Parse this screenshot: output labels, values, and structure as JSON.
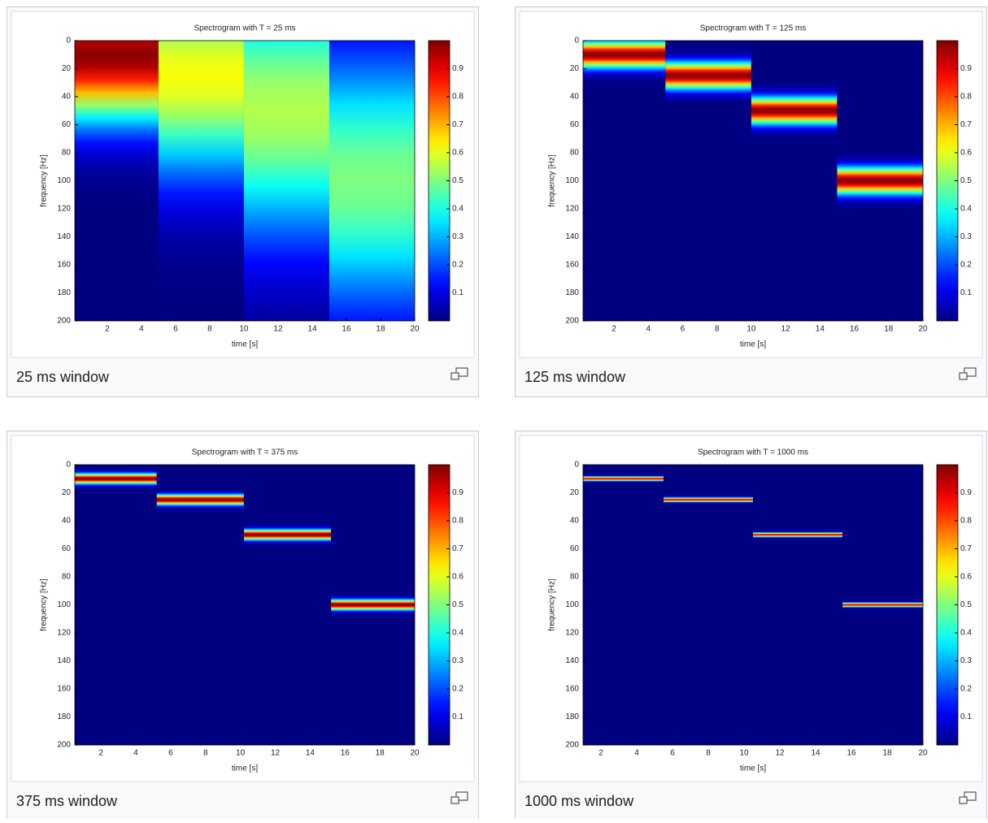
{
  "chart_data": [
    {
      "type": "heatmap",
      "title": "Spectrogram with T = 25 ms",
      "xlabel": "time [s]",
      "ylabel": "frequency [Hz]",
      "caption": "25 ms window",
      "xlim": [
        0.1,
        20
      ],
      "xticks": [
        2,
        4,
        6,
        8,
        10,
        12,
        14,
        16,
        18,
        20
      ],
      "ylim": [
        0,
        200
      ],
      "y_reversed": true,
      "yticks": [
        0,
        20,
        40,
        60,
        80,
        100,
        120,
        140,
        160,
        180,
        200
      ],
      "colormap": "jet",
      "clim": [
        0,
        1
      ],
      "cticks": [
        0.1,
        0.2,
        0.3,
        0.4,
        0.5,
        0.6,
        0.7,
        0.8,
        0.9
      ],
      "segments": {
        "start": [
          0.1,
          5,
          10,
          15
        ],
        "end": [
          5,
          10,
          15,
          20
        ],
        "frequency": [
          10,
          25,
          50,
          100
        ],
        "bandwidth": [
          45,
          70,
          90,
          90
        ],
        "peak": [
          0.99,
          0.62,
          0.55,
          0.5
        ]
      }
    },
    {
      "type": "heatmap",
      "title": "Spectrogram with T = 125 ms",
      "xlabel": "time [s]",
      "ylabel": "frequency [Hz]",
      "caption": "125 ms window",
      "xlim": [
        0.2,
        20
      ],
      "xticks": [
        2,
        4,
        6,
        8,
        10,
        12,
        14,
        16,
        18,
        20
      ],
      "ylim": [
        0,
        200
      ],
      "y_reversed": true,
      "yticks": [
        0,
        20,
        40,
        60,
        80,
        100,
        120,
        140,
        160,
        180,
        200
      ],
      "colormap": "jet",
      "clim": [
        0,
        1
      ],
      "cticks": [
        0.1,
        0.2,
        0.3,
        0.4,
        0.5,
        0.6,
        0.7,
        0.8,
        0.9
      ],
      "segments": {
        "start": [
          0.2,
          5,
          10,
          15
        ],
        "end": [
          5,
          10,
          15,
          20
        ],
        "frequency": [
          10,
          25,
          50,
          100
        ],
        "bandwidth": [
          9,
          9,
          9,
          9
        ],
        "peak": [
          0.99,
          0.99,
          0.99,
          0.99
        ]
      }
    },
    {
      "type": "heatmap",
      "title": "Spectrogram with T = 375 ms",
      "xlabel": "time [s]",
      "ylabel": "frequency [Hz]",
      "caption": "375 ms window",
      "xlim": [
        0.5,
        20
      ],
      "xticks": [
        2,
        4,
        6,
        8,
        10,
        12,
        14,
        16,
        18,
        20
      ],
      "ylim": [
        0,
        200
      ],
      "y_reversed": true,
      "yticks": [
        0,
        20,
        40,
        60,
        80,
        100,
        120,
        140,
        160,
        180,
        200
      ],
      "colormap": "jet",
      "clim": [
        0,
        1
      ],
      "cticks": [
        0.1,
        0.2,
        0.3,
        0.4,
        0.5,
        0.6,
        0.7,
        0.8,
        0.9
      ],
      "segments": {
        "start": [
          0.5,
          5.2,
          10.2,
          15.2
        ],
        "end": [
          5.2,
          10.2,
          15.2,
          20
        ],
        "frequency": [
          10,
          25,
          50,
          100
        ],
        "bandwidth": [
          3.5,
          3.5,
          3.5,
          3.5
        ],
        "peak": [
          0.99,
          0.99,
          0.99,
          0.99
        ]
      }
    },
    {
      "type": "heatmap",
      "title": "Spectrogram with T = 1000 ms",
      "xlabel": "time [s]",
      "ylabel": "frequency [Hz]",
      "caption": "1000 ms window",
      "xlim": [
        1,
        20
      ],
      "xticks": [
        2,
        4,
        6,
        8,
        10,
        12,
        14,
        16,
        18,
        20
      ],
      "ylim": [
        0,
        200
      ],
      "y_reversed": true,
      "yticks": [
        0,
        20,
        40,
        60,
        80,
        100,
        120,
        140,
        160,
        180,
        200
      ],
      "colormap": "jet",
      "clim": [
        0,
        1
      ],
      "cticks": [
        0.1,
        0.2,
        0.3,
        0.4,
        0.5,
        0.6,
        0.7,
        0.8,
        0.9
      ],
      "segments": {
        "start": [
          1,
          5.5,
          10.5,
          15.5
        ],
        "end": [
          5.5,
          10.5,
          15.5,
          20
        ],
        "frequency": [
          10,
          25,
          50,
          100
        ],
        "bandwidth": [
          1.5,
          1.5,
          1.5,
          1.5
        ],
        "peak": [
          0.9,
          0.9,
          0.9,
          0.9
        ]
      }
    }
  ]
}
